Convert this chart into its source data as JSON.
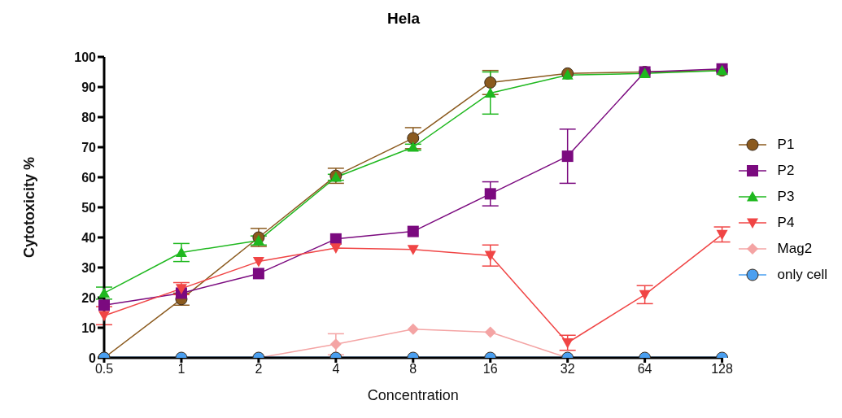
{
  "chart_data": {
    "type": "line",
    "title": "Hela",
    "xlabel": "Concentration",
    "ylabel": "Cytotoxicity %",
    "categories": [
      "0.5",
      "1",
      "2",
      "4",
      "8",
      "16",
      "32",
      "64",
      "128"
    ],
    "ylim": [
      0,
      100
    ],
    "yticks": [
      0,
      10,
      20,
      30,
      40,
      50,
      60,
      70,
      80,
      90,
      100
    ],
    "legend": "right",
    "series": [
      {
        "name": "P1",
        "color": "#8b5a1e",
        "marker": "circle",
        "values": [
          0,
          19.5,
          40,
          60.5,
          73,
          91.5,
          94.5,
          95,
          95.5
        ],
        "errors": [
          null,
          2,
          3,
          2.5,
          3.5,
          4,
          null,
          null,
          null
        ]
      },
      {
        "name": "P2",
        "color": "#7b0a7f",
        "marker": "square",
        "values": [
          17.5,
          21.5,
          28,
          39.5,
          42,
          54.5,
          67,
          95,
          96
        ],
        "errors": [
          null,
          null,
          null,
          null,
          null,
          4,
          9,
          null,
          null
        ]
      },
      {
        "name": "P3",
        "color": "#1fb81f",
        "marker": "triangle",
        "values": [
          21.5,
          35,
          39,
          60,
          70,
          88,
          94,
          94.5,
          95.5
        ],
        "errors": [
          2,
          3,
          1.5,
          1,
          1,
          7,
          null,
          null,
          null
        ]
      },
      {
        "name": "P4",
        "color": "#f04545",
        "marker": "triangle-down",
        "values": [
          14,
          23,
          32,
          36.5,
          36,
          34,
          5,
          21,
          41
        ],
        "errors": [
          3,
          2,
          null,
          null,
          null,
          3.5,
          2.5,
          3,
          2.5
        ]
      },
      {
        "name": "Mag2",
        "color": "#f4a4a4",
        "marker": "diamond",
        "values": [
          0,
          0,
          0,
          4.5,
          9.5,
          8.5,
          0,
          0,
          0
        ],
        "errors": [
          null,
          null,
          null,
          3.5,
          null,
          null,
          null,
          null,
          null
        ]
      },
      {
        "name": "only cell",
        "color": "#4a9ff0",
        "marker": "circle",
        "values": [
          0,
          0,
          0,
          0,
          0,
          0,
          0,
          0,
          0
        ]
      }
    ]
  }
}
